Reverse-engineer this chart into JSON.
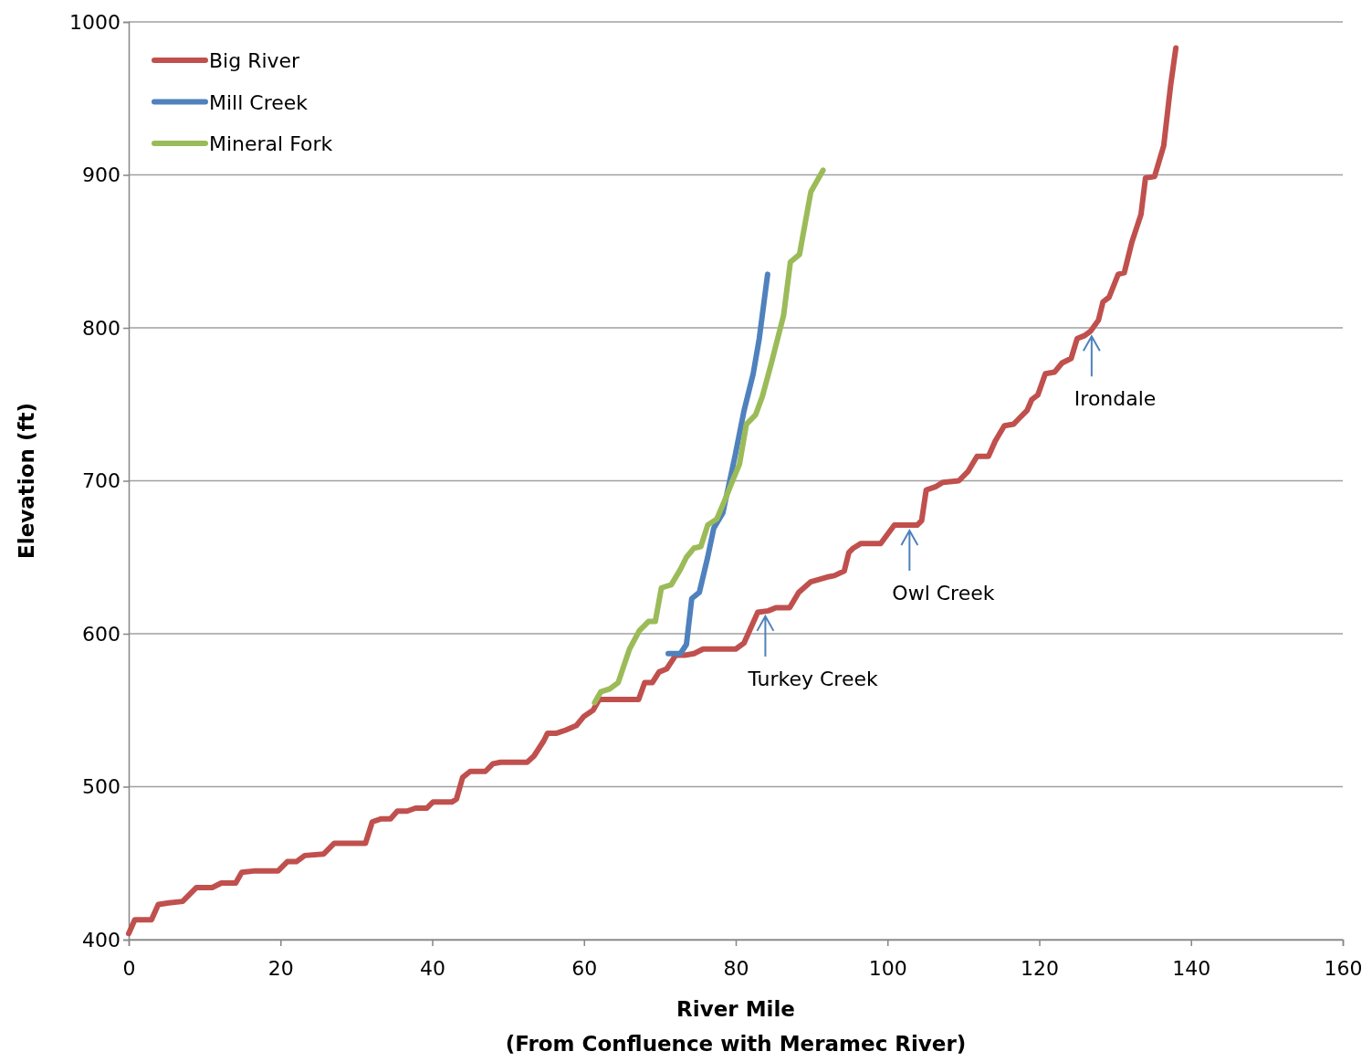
{
  "chart_data": {
    "type": "line",
    "xlabel": "River Mile\n(From Confluence with Meramec River)",
    "ylabel": "Elevation (ft)",
    "xlim": [
      0,
      160
    ],
    "xticks": [
      0,
      20,
      40,
      60,
      80,
      100,
      120,
      140,
      160
    ],
    "ylim": [
      400,
      1000
    ],
    "yticks": [
      400,
      500,
      600,
      700,
      800,
      900,
      1000
    ],
    "grid": "y",
    "legend": "top left",
    "line_style": "solid",
    "series": [
      {
        "name": "Big River",
        "color": "#c0504d",
        "x": [
          0,
          0.8,
          3,
          3.9,
          5.3,
          7.1,
          8.9,
          11,
          12.2,
          14.1,
          14.9,
          16.7,
          19.7,
          20.9,
          22.1,
          23.2,
          25.7,
          27.1,
          31.2,
          32.1,
          33.3,
          34.5,
          35.4,
          36.7,
          37.8,
          39.3,
          40.1,
          42.6,
          43.2,
          44,
          45,
          47,
          48,
          49,
          52.5,
          53.4,
          54.7,
          55.2,
          56.4,
          57.6,
          59,
          60,
          61.2,
          62,
          67.2,
          68,
          69,
          69.9,
          70.9,
          72.1,
          73.3,
          74.5,
          75.7,
          80,
          81.1,
          82.9,
          84.3,
          85.3,
          87.1,
          88.3,
          89.9,
          92,
          93,
          94.3,
          94.9,
          95.5,
          96.5,
          99.1,
          100.3,
          100.9,
          103.9,
          104.5,
          105.1,
          106.3,
          107.3,
          109.4,
          110.6,
          111.2,
          111.8,
          113.3,
          114.2,
          114.8,
          115.4,
          116.6,
          117.2,
          118.4,
          119,
          119.8,
          120.8,
          122,
          123,
          124.2,
          125,
          126,
          126.8,
          127.8,
          128.4,
          129.2,
          130.4,
          131.2,
          132.2,
          133.4,
          134,
          135.2,
          136.4,
          137.3,
          138
        ],
        "values": [
          404,
          413,
          413,
          423,
          424,
          425,
          434,
          434,
          437,
          437,
          444,
          445,
          445,
          451,
          451,
          455,
          456,
          463,
          463,
          477,
          479,
          479,
          484,
          484,
          486,
          486,
          490,
          490,
          492,
          506,
          510,
          510,
          515,
          516,
          516,
          520,
          530,
          535,
          535,
          537,
          540,
          546,
          550,
          557,
          557,
          568,
          568,
          575,
          577,
          586,
          586,
          587,
          590,
          590,
          594,
          614,
          615,
          617,
          617,
          627,
          634,
          637,
          638,
          641,
          653,
          656,
          659,
          659,
          667,
          671,
          671,
          674,
          694,
          696,
          699,
          700,
          706,
          711,
          716,
          716,
          726,
          731,
          736,
          737,
          740,
          746,
          753,
          756,
          770,
          771,
          777,
          780,
          793,
          795,
          798,
          805,
          817,
          820,
          835,
          836,
          856,
          874,
          898,
          899,
          919,
          958,
          983
        ]
      },
      {
        "name": "Mill Creek",
        "color": "#4f81bd",
        "x": [
          71.1,
          72.7,
          73.5,
          74.2,
          75.2,
          76.3,
          77.1,
          78.3,
          79.9,
          81.1,
          82.3,
          83.1,
          84.2
        ],
        "values": [
          587,
          587,
          593,
          623,
          627,
          650,
          669,
          679,
          716,
          746,
          770,
          793,
          835
        ]
      },
      {
        "name": "Mineral Fork",
        "color": "#9bbb59",
        "x": [
          61.4,
          62.2,
          63.4,
          64.5,
          66,
          67.3,
          68.5,
          69.4,
          70.2,
          71.5,
          72.7,
          73.5,
          74.5,
          75.4,
          76.3,
          77.5,
          78.7,
          79.5,
          80.5,
          81.4,
          82.6,
          83.5,
          84.7,
          86.3,
          87.2,
          88.4,
          89.9,
          91.5
        ],
        "values": [
          555,
          562,
          564,
          568,
          590,
          602,
          608,
          608,
          630,
          632,
          642,
          650,
          656,
          657,
          671,
          675,
          689,
          699,
          711,
          737,
          743,
          755,
          777,
          808,
          843,
          848,
          889,
          903
        ]
      }
    ],
    "annotations": [
      {
        "text": "Turkey Creek",
        "x": 83.9,
        "y": 615
      },
      {
        "text": "Owl Creek",
        "x": 102.9,
        "y": 671
      },
      {
        "text": "Irondale",
        "x": 126.9,
        "y": 798
      }
    ]
  }
}
